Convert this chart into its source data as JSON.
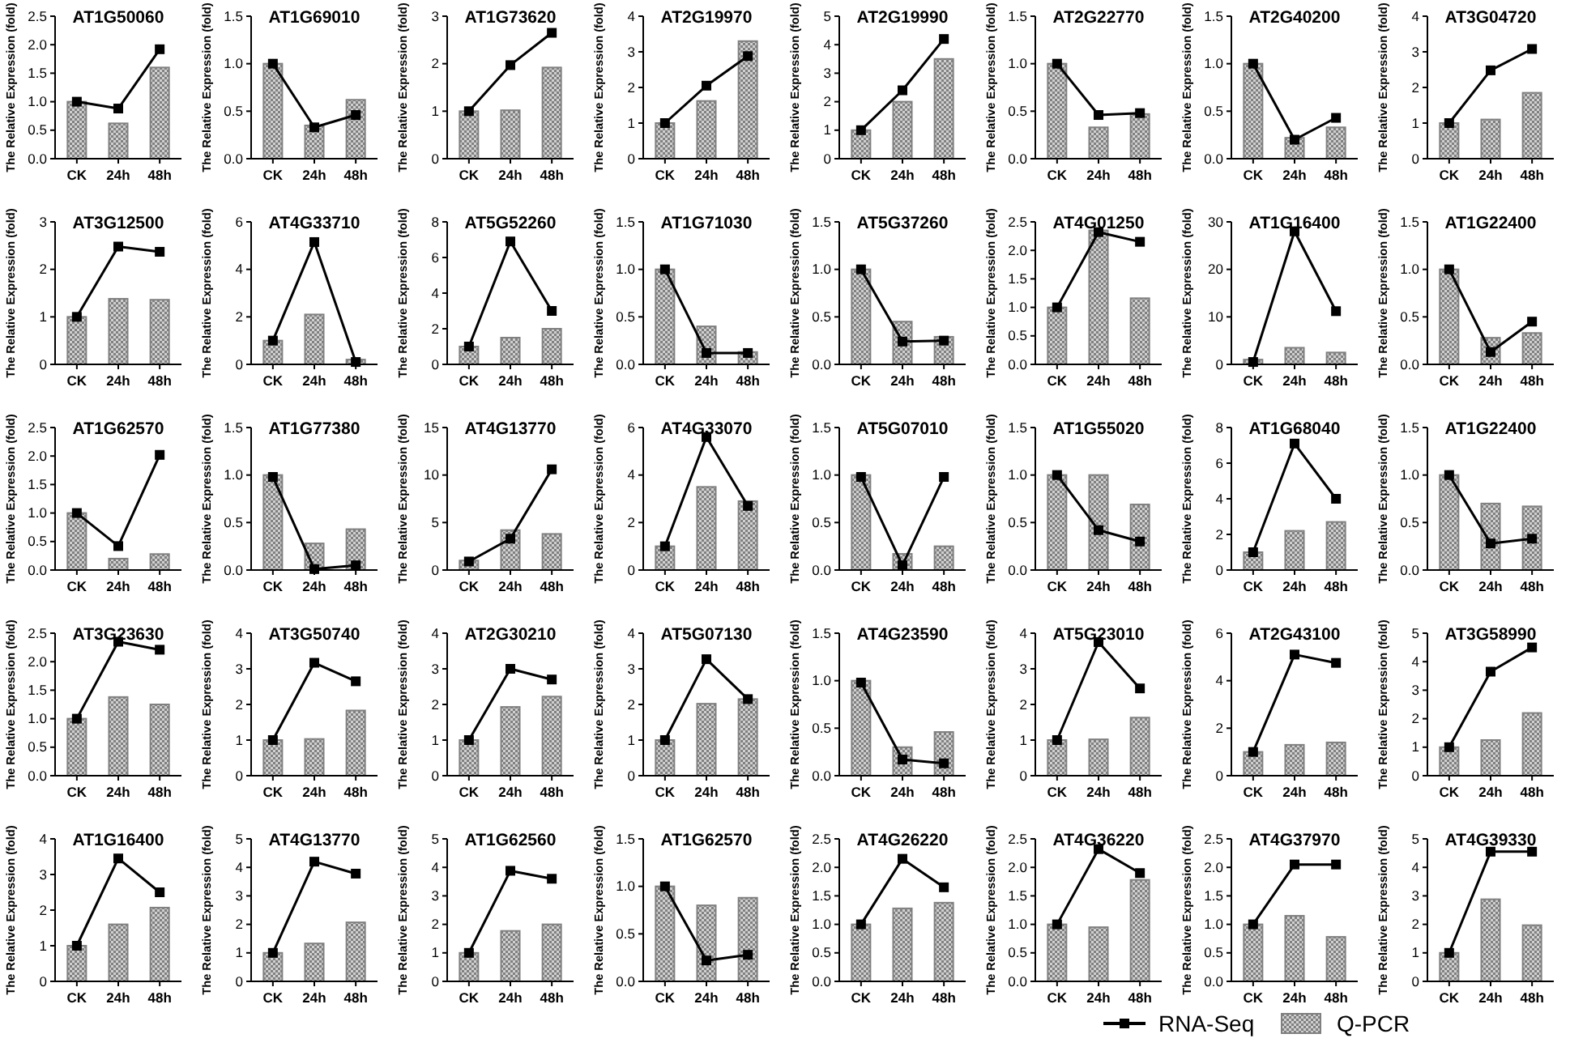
{
  "chart_data": [
    {
      "type": "bar",
      "title": "AT1G50060",
      "ylabel": "The Relative Expression (fold)",
      "categories": [
        "CK",
        "24h",
        "48h"
      ],
      "ylim": [
        0,
        2.5
      ],
      "yticks": [
        {
          "value": 0,
          "label": "0.0"
        },
        {
          "value": 0.5,
          "label": "0.5"
        },
        {
          "value": 1,
          "label": "1.0"
        },
        {
          "value": 1.5,
          "label": "1.5"
        },
        {
          "value": 2,
          "label": "2.0"
        },
        {
          "value": 2.5,
          "label": "2.5"
        }
      ],
      "marker": "square",
      "series": [
        {
          "type": "bar",
          "color": "#808080",
          "values": [
            1.0,
            0.62,
            1.6
          ]
        },
        {
          "type": "line",
          "color": "#000000",
          "values": [
            1.0,
            0.88,
            1.92
          ]
        }
      ]
    },
    {
      "type": "bar",
      "title": "AT1G69010",
      "ylabel": "The Relative Expression (fold)",
      "categories": [
        "CK",
        "24h",
        "48h"
      ],
      "ylim": [
        0,
        1.5
      ],
      "yticks": [
        {
          "value": 0,
          "label": "0.0"
        },
        {
          "value": 0.5,
          "label": "0.5"
        },
        {
          "value": 1,
          "label": "1.0"
        },
        {
          "value": 1.5,
          "label": "1.5"
        }
      ],
      "marker": "square",
      "series": [
        {
          "type": "bar",
          "color": "#808080",
          "values": [
            1.0,
            0.35,
            0.62
          ]
        },
        {
          "type": "line",
          "color": "#000000",
          "values": [
            1.0,
            0.33,
            0.46
          ]
        }
      ]
    },
    {
      "type": "bar",
      "title": "AT1G73620",
      "ylabel": "The Relative Expression (fold)",
      "categories": [
        "CK",
        "24h",
        "48h"
      ],
      "ylim": [
        0,
        3
      ],
      "yticks": [
        0,
        1,
        2,
        3
      ],
      "marker": "square",
      "series": [
        {
          "type": "bar",
          "color": "#808080",
          "values": [
            1.0,
            1.02,
            1.92
          ]
        },
        {
          "type": "line",
          "color": "#000000",
          "values": [
            1.0,
            1.97,
            2.65
          ]
        }
      ]
    },
    {
      "type": "bar",
      "title": "AT2G19970",
      "ylabel": "The Relative Expression (fold)",
      "categories": [
        "CK",
        "24h",
        "48h"
      ],
      "ylim": [
        0,
        4
      ],
      "yticks": [
        0,
        1,
        2,
        3,
        4
      ],
      "marker": "square",
      "series": [
        {
          "type": "bar",
          "color": "#808080",
          "values": [
            1.0,
            1.62,
            3.3
          ]
        },
        {
          "type": "line",
          "color": "#000000",
          "values": [
            1.0,
            2.05,
            2.88
          ]
        }
      ]
    },
    {
      "type": "bar",
      "title": "AT2G19990",
      "ylabel": "The Relative Expression (fold)",
      "categories": [
        "CK",
        "24h",
        "48h"
      ],
      "ylim": [
        0,
        5
      ],
      "yticks": [
        0,
        1,
        2,
        3,
        4,
        5
      ],
      "marker": "square",
      "series": [
        {
          "type": "bar",
          "color": "#808080",
          "values": [
            1.0,
            2.0,
            3.5
          ]
        },
        {
          "type": "line",
          "color": "#000000",
          "values": [
            1.0,
            2.4,
            4.2
          ]
        }
      ]
    },
    {
      "type": "bar",
      "title": "AT2G22770",
      "ylabel": "The Relative Expression (fold)",
      "categories": [
        "CK",
        "24h",
        "48h"
      ],
      "ylim": [
        0,
        1.5
      ],
      "yticks": [
        {
          "value": 0,
          "label": "0.0"
        },
        {
          "value": 0.5,
          "label": "0.5"
        },
        {
          "value": 1,
          "label": "1.0"
        },
        {
          "value": 1.5,
          "label": "1.5"
        }
      ],
      "marker": "square",
      "series": [
        {
          "type": "bar",
          "color": "#808080",
          "values": [
            1.0,
            0.33,
            0.47
          ]
        },
        {
          "type": "line",
          "color": "#000000",
          "values": [
            1.0,
            0.46,
            0.48
          ]
        }
      ]
    },
    {
      "type": "bar",
      "title": "AT2G40200",
      "ylabel": "The Relative Expression (fold)",
      "categories": [
        "CK",
        "24h",
        "48h"
      ],
      "ylim": [
        0,
        1.5
      ],
      "yticks": [
        {
          "value": 0,
          "label": "0.0"
        },
        {
          "value": 0.5,
          "label": "0.5"
        },
        {
          "value": 1,
          "label": "1.0"
        },
        {
          "value": 1.5,
          "label": "1.5"
        }
      ],
      "marker": "square",
      "series": [
        {
          "type": "bar",
          "color": "#808080",
          "values": [
            1.0,
            0.22,
            0.33
          ]
        },
        {
          "type": "line",
          "color": "#000000",
          "values": [
            1.0,
            0.2,
            0.43
          ]
        }
      ]
    },
    {
      "type": "bar",
      "title": "AT3G04720",
      "ylabel": "The Relative Expression (fold)",
      "categories": [
        "CK",
        "24h",
        "48h"
      ],
      "ylim": [
        0,
        4
      ],
      "yticks": [
        0,
        1,
        2,
        3,
        4
      ],
      "marker": "square",
      "series": [
        {
          "type": "bar",
          "color": "#808080",
          "values": [
            1.0,
            1.1,
            1.85
          ]
        },
        {
          "type": "line",
          "color": "#000000",
          "values": [
            1.0,
            2.48,
            3.08
          ]
        }
      ]
    },
    {
      "type": "bar",
      "title": "AT3G12500",
      "ylabel": "The Relative Expression (fold)",
      "categories": [
        "CK",
        "24h",
        "48h"
      ],
      "ylim": [
        0,
        3
      ],
      "yticks": [
        0,
        1,
        2,
        3
      ],
      "marker": "square",
      "series": [
        {
          "type": "bar",
          "color": "#808080",
          "values": [
            1.0,
            1.38,
            1.36
          ]
        },
        {
          "type": "line",
          "color": "#000000",
          "values": [
            1.0,
            2.48,
            2.37
          ]
        }
      ]
    },
    {
      "type": "bar",
      "title": "AT4G33710",
      "ylabel": "The Relative Expression (fold)",
      "categories": [
        "CK",
        "24h",
        "48h"
      ],
      "ylim": [
        0,
        6
      ],
      "yticks": [
        0,
        2,
        4,
        6
      ],
      "marker": "square",
      "series": [
        {
          "type": "bar",
          "color": "#808080",
          "values": [
            1.0,
            2.1,
            0.2
          ]
        },
        {
          "type": "line",
          "color": "#000000",
          "values": [
            1.0,
            5.15,
            0.1
          ]
        }
      ]
    },
    {
      "type": "bar",
      "title": "AT5G52260",
      "ylabel": "The Relative Expression (fold)",
      "categories": [
        "CK",
        "24h",
        "48h"
      ],
      "ylim": [
        0,
        8
      ],
      "yticks": [
        0,
        2,
        4,
        6,
        8
      ],
      "marker": "square",
      "series": [
        {
          "type": "bar",
          "color": "#808080",
          "values": [
            1.0,
            1.5,
            2.0
          ]
        },
        {
          "type": "line",
          "color": "#000000",
          "values": [
            1.0,
            6.9,
            3.0
          ]
        }
      ]
    },
    {
      "type": "bar",
      "title": "AT1G71030",
      "ylabel": "The Relative Expression (fold)",
      "categories": [
        "CK",
        "24h",
        "48h"
      ],
      "ylim": [
        0,
        1.5
      ],
      "yticks": [
        {
          "value": 0,
          "label": "0.0"
        },
        {
          "value": 0.5,
          "label": "0.5"
        },
        {
          "value": 1,
          "label": "1.0"
        },
        {
          "value": 1.5,
          "label": "1.5"
        }
      ],
      "marker": "square",
      "series": [
        {
          "type": "bar",
          "color": "#808080",
          "values": [
            1.0,
            0.4,
            0.13
          ]
        },
        {
          "type": "line",
          "color": "#000000",
          "values": [
            1.0,
            0.12,
            0.12
          ]
        }
      ]
    },
    {
      "type": "bar",
      "title": "AT5G37260",
      "ylabel": "The Relative Expression (fold)",
      "categories": [
        "CK",
        "24h",
        "48h"
      ],
      "ylim": [
        0,
        1.5
      ],
      "yticks": [
        {
          "value": 0,
          "label": "0.0"
        },
        {
          "value": 0.5,
          "label": "0.5"
        },
        {
          "value": 1,
          "label": "1.0"
        },
        {
          "value": 1.5,
          "label": "1.5"
        }
      ],
      "marker": "square",
      "series": [
        {
          "type": "bar",
          "color": "#808080",
          "values": [
            1.0,
            0.45,
            0.29
          ]
        },
        {
          "type": "line",
          "color": "#000000",
          "values": [
            1.0,
            0.24,
            0.25
          ]
        }
      ]
    },
    {
      "type": "bar",
      "title": "AT4G01250",
      "ylabel": "The Relative Expression (fold)",
      "categories": [
        "CK",
        "24h",
        "48h"
      ],
      "ylim": [
        0,
        2.5
      ],
      "yticks": [
        {
          "value": 0,
          "label": "0.0"
        },
        {
          "value": 0.5,
          "label": "0.5"
        },
        {
          "value": 1,
          "label": "1.0"
        },
        {
          "value": 1.5,
          "label": "1.5"
        },
        {
          "value": 2,
          "label": "2.0"
        },
        {
          "value": 2.5,
          "label": "2.5"
        }
      ],
      "marker": "square",
      "series": [
        {
          "type": "bar",
          "color": "#808080",
          "values": [
            1.0,
            2.35,
            1.16
          ]
        },
        {
          "type": "line",
          "color": "#000000",
          "values": [
            1.0,
            2.32,
            2.15
          ]
        }
      ]
    },
    {
      "type": "bar",
      "title": "AT1G16400",
      "ylabel": "The Relative Expression (fold)",
      "categories": [
        "CK",
        "24h",
        "48h"
      ],
      "ylim": [
        0,
        30
      ],
      "yticks": [
        0,
        10,
        20,
        30
      ],
      "marker": "square",
      "series": [
        {
          "type": "bar",
          "color": "#808080",
          "values": [
            1.0,
            3.5,
            2.5
          ]
        },
        {
          "type": "line",
          "color": "#000000",
          "values": [
            0.5,
            28,
            11.2
          ]
        }
      ]
    },
    {
      "type": "bar",
      "title": "AT1G22400",
      "ylabel": "The Relative Expression (fold)",
      "categories": [
        "CK",
        "24h",
        "48h"
      ],
      "ylim": [
        0,
        1.5
      ],
      "yticks": [
        {
          "value": 0,
          "label": "0.0"
        },
        {
          "value": 0.5,
          "label": "0.5"
        },
        {
          "value": 1,
          "label": "1.0"
        },
        {
          "value": 1.5,
          "label": "1.5"
        }
      ],
      "marker": "square",
      "series": [
        {
          "type": "bar",
          "color": "#808080",
          "values": [
            1.0,
            0.28,
            0.33
          ]
        },
        {
          "type": "line",
          "color": "#000000",
          "values": [
            1.0,
            0.13,
            0.45
          ]
        }
      ]
    },
    {
      "type": "bar",
      "title": "AT1G62570",
      "ylabel": "The Relative Expression (fold)",
      "categories": [
        "CK",
        "24h",
        "48h"
      ],
      "ylim": [
        0,
        2.5
      ],
      "yticks": [
        {
          "value": 0,
          "label": "0.0"
        },
        {
          "value": 0.5,
          "label": "0.5"
        },
        {
          "value": 1,
          "label": "1.0"
        },
        {
          "value": 1.5,
          "label": "1.5"
        },
        {
          "value": 2,
          "label": "2.0"
        },
        {
          "value": 2.5,
          "label": "2.5"
        }
      ],
      "marker": "square",
      "series": [
        {
          "type": "bar",
          "color": "#808080",
          "values": [
            1.0,
            0.2,
            0.28
          ]
        },
        {
          "type": "line",
          "color": "#000000",
          "values": [
            1.0,
            0.42,
            2.02
          ]
        }
      ]
    },
    {
      "type": "bar",
      "title": "AT1G77380",
      "ylabel": "The Relative Expression (fold)",
      "categories": [
        "CK",
        "24h",
        "48h"
      ],
      "ylim": [
        0,
        1.5
      ],
      "yticks": [
        {
          "value": 0,
          "label": "0.0"
        },
        {
          "value": 0.5,
          "label": "0.5"
        },
        {
          "value": 1,
          "label": "1.0"
        },
        {
          "value": 1.5,
          "label": "1.5"
        }
      ],
      "marker": "square",
      "series": [
        {
          "type": "bar",
          "color": "#808080",
          "values": [
            1.0,
            0.28,
            0.43
          ]
        },
        {
          "type": "line",
          "color": "#000000",
          "values": [
            0.98,
            0.01,
            0.05
          ]
        }
      ]
    },
    {
      "type": "bar",
      "title": "AT4G13770",
      "ylabel": "The Relative Expression (fold)",
      "categories": [
        "CK",
        "24h",
        "48h"
      ],
      "ylim": [
        0,
        15
      ],
      "yticks": [
        0,
        5,
        10,
        15
      ],
      "marker": "square",
      "series": [
        {
          "type": "bar",
          "color": "#808080",
          "values": [
            1.0,
            4.2,
            3.8
          ]
        },
        {
          "type": "line",
          "color": "#000000",
          "values": [
            0.9,
            3.3,
            10.6
          ]
        }
      ]
    },
    {
      "type": "bar",
      "title": "AT4G33070",
      "ylabel": "The Relative Expression (fold)",
      "categories": [
        "CK",
        "24h",
        "48h"
      ],
      "ylim": [
        0,
        6
      ],
      "yticks": [
        0,
        2,
        4,
        6
      ],
      "marker": "square",
      "series": [
        {
          "type": "bar",
          "color": "#808080",
          "values": [
            1.0,
            3.5,
            2.9
          ]
        },
        {
          "type": "line",
          "color": "#000000",
          "values": [
            1.0,
            5.6,
            2.7
          ]
        }
      ]
    },
    {
      "type": "bar",
      "title": "AT5G07010",
      "ylabel": "The Relative Expression (fold)",
      "categories": [
        "CK",
        "24h",
        "48h"
      ],
      "ylim": [
        0,
        1.5
      ],
      "yticks": [
        {
          "value": 0,
          "label": "0.0"
        },
        {
          "value": 0.5,
          "label": "0.5"
        },
        {
          "value": 1,
          "label": "1.0"
        },
        {
          "value": 1.5,
          "label": "1.5"
        }
      ],
      "marker": "square",
      "series": [
        {
          "type": "bar",
          "color": "#808080",
          "values": [
            1.0,
            0.17,
            0.25
          ]
        },
        {
          "type": "line",
          "color": "#000000",
          "values": [
            0.98,
            0.05,
            0.98
          ]
        }
      ]
    },
    {
      "type": "bar",
      "title": "AT1G55020",
      "ylabel": "The Relative Expression (fold)",
      "categories": [
        "CK",
        "24h",
        "48h"
      ],
      "ylim": [
        0,
        1.5
      ],
      "yticks": [
        {
          "value": 0,
          "label": "0.0"
        },
        {
          "value": 0.5,
          "label": "0.5"
        },
        {
          "value": 1,
          "label": "1.0"
        },
        {
          "value": 1.5,
          "label": "1.5"
        }
      ],
      "marker": "square",
      "series": [
        {
          "type": "bar",
          "color": "#808080",
          "values": [
            1.0,
            1.0,
            0.69
          ]
        },
        {
          "type": "line",
          "color": "#000000",
          "values": [
            1.0,
            0.42,
            0.3
          ]
        }
      ]
    },
    {
      "type": "bar",
      "title": "AT1G68040",
      "ylabel": "The Relative Expression (fold)",
      "categories": [
        "CK",
        "24h",
        "48h"
      ],
      "ylim": [
        0,
        8
      ],
      "yticks": [
        0,
        2,
        4,
        6,
        8
      ],
      "marker": "square",
      "series": [
        {
          "type": "bar",
          "color": "#808080",
          "values": [
            1.0,
            2.2,
            2.7
          ]
        },
        {
          "type": "line",
          "color": "#000000",
          "values": [
            1.0,
            7.1,
            4.0
          ]
        }
      ]
    },
    {
      "type": "bar",
      "title": "AT1G22400",
      "ylabel": "The Relative Expression (fold)",
      "categories": [
        "CK",
        "24h",
        "48h"
      ],
      "ylim": [
        0,
        1.5
      ],
      "yticks": [
        {
          "value": 0,
          "label": "0.0"
        },
        {
          "value": 0.5,
          "label": "0.5"
        },
        {
          "value": 1,
          "label": "1.0"
        },
        {
          "value": 1.5,
          "label": "1.5"
        }
      ],
      "marker": "square",
      "series": [
        {
          "type": "bar",
          "color": "#808080",
          "values": [
            1.0,
            0.7,
            0.67
          ]
        },
        {
          "type": "line",
          "color": "#000000",
          "values": [
            1.0,
            0.28,
            0.33
          ]
        }
      ]
    },
    {
      "type": "bar",
      "title": "AT3G23630",
      "ylabel": "The Relative Expression (fold)",
      "categories": [
        "CK",
        "24h",
        "48h"
      ],
      "ylim": [
        0,
        2.5
      ],
      "yticks": [
        {
          "value": 0,
          "label": "0.0"
        },
        {
          "value": 0.5,
          "label": "0.5"
        },
        {
          "value": 1,
          "label": "1.0"
        },
        {
          "value": 1.5,
          "label": "1.5"
        },
        {
          "value": 2,
          "label": "2.0"
        },
        {
          "value": 2.5,
          "label": "2.5"
        }
      ],
      "marker": "square",
      "series": [
        {
          "type": "bar",
          "color": "#808080",
          "values": [
            1.0,
            1.38,
            1.25
          ]
        },
        {
          "type": "line",
          "color": "#000000",
          "values": [
            1.0,
            2.35,
            2.21
          ]
        }
      ]
    },
    {
      "type": "bar",
      "title": "AT3G50740",
      "ylabel": "The Relative Expression (fold)",
      "categories": [
        "CK",
        "24h",
        "48h"
      ],
      "ylim": [
        0,
        4
      ],
      "yticks": [
        0,
        1,
        2,
        3,
        4
      ],
      "marker": "square",
      "series": [
        {
          "type": "bar",
          "color": "#808080",
          "values": [
            1.0,
            1.03,
            1.83
          ]
        },
        {
          "type": "line",
          "color": "#000000",
          "values": [
            1.0,
            3.17,
            2.65
          ]
        }
      ]
    },
    {
      "type": "bar",
      "title": "AT2G30210",
      "ylabel": "The Relative Expression (fold)",
      "categories": [
        "CK",
        "24h",
        "48h"
      ],
      "ylim": [
        0,
        4
      ],
      "yticks": [
        0,
        1,
        2,
        3,
        4
      ],
      "marker": "square",
      "series": [
        {
          "type": "bar",
          "color": "#808080",
          "values": [
            1.0,
            1.93,
            2.22
          ]
        },
        {
          "type": "line",
          "color": "#000000",
          "values": [
            1.0,
            3.0,
            2.7
          ]
        }
      ]
    },
    {
      "type": "bar",
      "title": "AT5G07130",
      "ylabel": "The Relative Expression (fold)",
      "categories": [
        "CK",
        "24h",
        "48h"
      ],
      "ylim": [
        0,
        4
      ],
      "yticks": [
        0,
        1,
        2,
        3,
        4
      ],
      "marker": "square",
      "series": [
        {
          "type": "bar",
          "color": "#808080",
          "values": [
            1.0,
            2.02,
            2.15
          ]
        },
        {
          "type": "line",
          "color": "#000000",
          "values": [
            1.0,
            3.27,
            2.15
          ]
        }
      ]
    },
    {
      "type": "bar",
      "title": "AT4G23590",
      "ylabel": "The Relative Expression (fold)",
      "categories": [
        "CK",
        "24h",
        "48h"
      ],
      "ylim": [
        0,
        1.5
      ],
      "yticks": [
        {
          "value": 0,
          "label": "0.0"
        },
        {
          "value": 0.5,
          "label": "0.5"
        },
        {
          "value": 1,
          "label": "1.0"
        },
        {
          "value": 1.5,
          "label": "1.5"
        }
      ],
      "marker": "square",
      "series": [
        {
          "type": "bar",
          "color": "#808080",
          "values": [
            1.0,
            0.3,
            0.46
          ]
        },
        {
          "type": "line",
          "color": "#000000",
          "values": [
            0.98,
            0.17,
            0.13
          ]
        }
      ]
    },
    {
      "type": "bar",
      "title": "AT5G23010",
      "ylabel": "The Relative Expression (fold)",
      "categories": [
        "CK",
        "24h",
        "48h"
      ],
      "ylim": [
        0,
        4
      ],
      "yticks": [
        0,
        1,
        2,
        3,
        4
      ],
      "marker": "square",
      "series": [
        {
          "type": "bar",
          "color": "#808080",
          "values": [
            1.0,
            1.02,
            1.63
          ]
        },
        {
          "type": "line",
          "color": "#000000",
          "values": [
            1.0,
            3.75,
            2.45
          ]
        }
      ]
    },
    {
      "type": "bar",
      "title": "AT2G43100",
      "ylabel": "The Relative Expression (fold)",
      "categories": [
        "CK",
        "24h",
        "48h"
      ],
      "ylim": [
        0,
        6
      ],
      "yticks": [
        0,
        2,
        4,
        6
      ],
      "marker": "square",
      "series": [
        {
          "type": "bar",
          "color": "#808080",
          "values": [
            1.0,
            1.3,
            1.4
          ]
        },
        {
          "type": "line",
          "color": "#000000",
          "values": [
            1.0,
            5.1,
            4.75
          ]
        }
      ]
    },
    {
      "type": "bar",
      "title": "AT3G58990",
      "ylabel": "The Relative Expression (fold)",
      "categories": [
        "CK",
        "24h",
        "48h"
      ],
      "ylim": [
        0,
        5
      ],
      "yticks": [
        0,
        1,
        2,
        3,
        4,
        5
      ],
      "marker": "square",
      "series": [
        {
          "type": "bar",
          "color": "#808080",
          "values": [
            1.0,
            1.25,
            2.2
          ]
        },
        {
          "type": "line",
          "color": "#000000",
          "values": [
            1.0,
            3.65,
            4.5
          ]
        }
      ]
    },
    {
      "type": "bar",
      "title": "AT1G16400",
      "ylabel": "The Relative Expression (fold)",
      "categories": [
        "CK",
        "24h",
        "48h"
      ],
      "ylim": [
        0,
        4
      ],
      "yticks": [
        0,
        1,
        2,
        3,
        4
      ],
      "marker": "square",
      "series": [
        {
          "type": "bar",
          "color": "#808080",
          "values": [
            1.0,
            1.6,
            2.07
          ]
        },
        {
          "type": "line",
          "color": "#000000",
          "values": [
            1.0,
            3.45,
            2.5
          ]
        }
      ]
    },
    {
      "type": "bar",
      "title": "AT4G13770",
      "ylabel": "The Relative Expression (fold)",
      "categories": [
        "CK",
        "24h",
        "48h"
      ],
      "ylim": [
        0,
        5
      ],
      "yticks": [
        0,
        1,
        2,
        3,
        4,
        5
      ],
      "marker": "square",
      "series": [
        {
          "type": "bar",
          "color": "#808080",
          "values": [
            1.0,
            1.33,
            2.07
          ]
        },
        {
          "type": "line",
          "color": "#000000",
          "values": [
            1.0,
            4.2,
            3.78
          ]
        }
      ]
    },
    {
      "type": "bar",
      "title": "AT1G62560",
      "ylabel": "The Relative Expression (fold)",
      "categories": [
        "CK",
        "24h",
        "48h"
      ],
      "ylim": [
        0,
        5
      ],
      "yticks": [
        0,
        1,
        2,
        3,
        4,
        5
      ],
      "marker": "square",
      "series": [
        {
          "type": "bar",
          "color": "#808080",
          "values": [
            1.0,
            1.77,
            2.0
          ]
        },
        {
          "type": "line",
          "color": "#000000",
          "values": [
            1.0,
            3.88,
            3.6
          ]
        }
      ]
    },
    {
      "type": "bar",
      "title": "AT1G62570",
      "ylabel": "The Relative Expression (fold)",
      "categories": [
        "CK",
        "24h",
        "48h"
      ],
      "ylim": [
        0,
        1.5
      ],
      "yticks": [
        {
          "value": 0,
          "label": "0.0"
        },
        {
          "value": 0.5,
          "label": "0.5"
        },
        {
          "value": 1,
          "label": "1.0"
        },
        {
          "value": 1.5,
          "label": "1.5"
        }
      ],
      "marker": "square",
      "series": [
        {
          "type": "bar",
          "color": "#808080",
          "values": [
            1.0,
            0.8,
            0.88
          ]
        },
        {
          "type": "line",
          "color": "#000000",
          "values": [
            1.0,
            0.22,
            0.28
          ]
        }
      ]
    },
    {
      "type": "bar",
      "title": "AT4G26220",
      "ylabel": "The Relative Expression (fold)",
      "categories": [
        "CK",
        "24h",
        "48h"
      ],
      "ylim": [
        0,
        2.5
      ],
      "yticks": [
        {
          "value": 0,
          "label": "0.0"
        },
        {
          "value": 0.5,
          "label": "0.5"
        },
        {
          "value": 1,
          "label": "1.0"
        },
        {
          "value": 1.5,
          "label": "1.5"
        },
        {
          "value": 2,
          "label": "2.0"
        },
        {
          "value": 2.5,
          "label": "2.5"
        }
      ],
      "marker": "square",
      "series": [
        {
          "type": "bar",
          "color": "#808080",
          "values": [
            1.0,
            1.28,
            1.38
          ]
        },
        {
          "type": "line",
          "color": "#000000",
          "values": [
            1.0,
            2.15,
            1.65
          ]
        }
      ]
    },
    {
      "type": "bar",
      "title": "AT4G36220",
      "ylabel": "The Relative Expression (fold)",
      "categories": [
        "CK",
        "24h",
        "48h"
      ],
      "ylim": [
        0,
        2.5
      ],
      "yticks": [
        {
          "value": 0,
          "label": "0.0"
        },
        {
          "value": 0.5,
          "label": "0.5"
        },
        {
          "value": 1,
          "label": "1.0"
        },
        {
          "value": 1.5,
          "label": "1.5"
        },
        {
          "value": 2,
          "label": "2.0"
        },
        {
          "value": 2.5,
          "label": "2.5"
        }
      ],
      "marker": "square",
      "series": [
        {
          "type": "bar",
          "color": "#808080",
          "values": [
            1.0,
            0.95,
            1.78
          ]
        },
        {
          "type": "line",
          "color": "#000000",
          "values": [
            1.0,
            2.32,
            1.9
          ]
        }
      ]
    },
    {
      "type": "bar",
      "title": "AT4G37970",
      "ylabel": "The Relative Expression (fold)",
      "categories": [
        "CK",
        "24h",
        "48h"
      ],
      "ylim": [
        0,
        2.5
      ],
      "yticks": [
        {
          "value": 0,
          "label": "0.0"
        },
        {
          "value": 0.5,
          "label": "0.5"
        },
        {
          "value": 1,
          "label": "1.0"
        },
        {
          "value": 1.5,
          "label": "1.5"
        },
        {
          "value": 2,
          "label": "2.0"
        },
        {
          "value": 2.5,
          "label": "2.5"
        }
      ],
      "marker": "square",
      "series": [
        {
          "type": "bar",
          "color": "#808080",
          "values": [
            1.0,
            1.15,
            0.78
          ]
        },
        {
          "type": "line",
          "color": "#000000",
          "values": [
            1.0,
            2.05,
            2.05
          ]
        }
      ]
    },
    {
      "type": "bar",
      "title": "AT4G39330",
      "ylabel": "The Relative Expression (fold)",
      "categories": [
        "CK",
        "24h",
        "48h"
      ],
      "ylim": [
        0,
        5
      ],
      "yticks": [
        0,
        1,
        2,
        3,
        4,
        5
      ],
      "marker": "square",
      "legend": "bottom left",
      "series": [
        {
          "name": "Q-PCR",
          "type": "bar",
          "color": "#808080",
          "values": [
            1.0,
            2.88,
            1.97
          ]
        },
        {
          "name": "RNA-Seq",
          "type": "line",
          "color": "#000000",
          "values": [
            1.0,
            4.55,
            4.55
          ]
        }
      ]
    }
  ]
}
